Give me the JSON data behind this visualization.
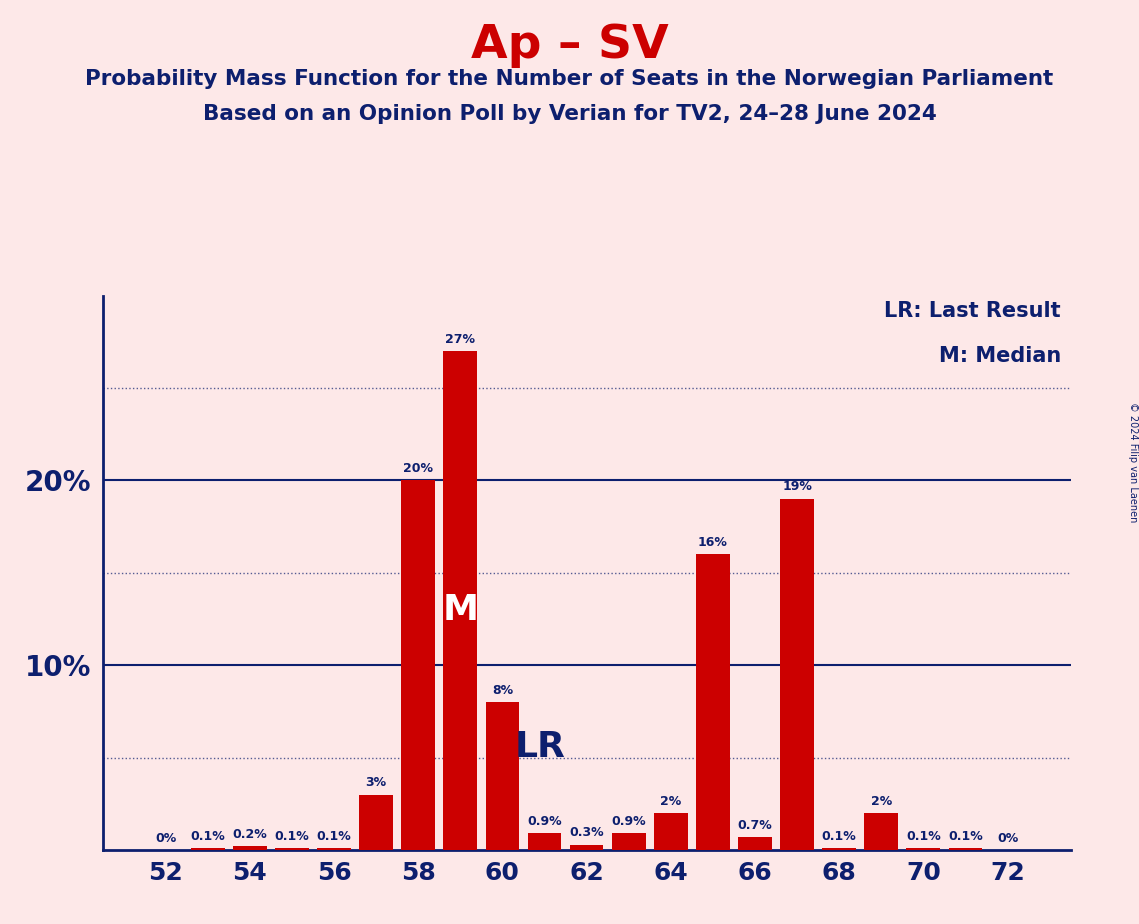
{
  "title": "Ap – SV",
  "subtitle1": "Probability Mass Function for the Number of Seats in the Norwegian Parliament",
  "subtitle2": "Based on an Opinion Poll by Verian for TV2, 24–28 June 2024",
  "copyright": "© 2024 Filip van Laenen",
  "seats": [
    52,
    53,
    54,
    55,
    56,
    57,
    58,
    59,
    60,
    61,
    62,
    63,
    64,
    65,
    66,
    67,
    68,
    69,
    70,
    71,
    72
  ],
  "values": [
    0.0,
    0.1,
    0.2,
    0.1,
    0.1,
    3.0,
    20.0,
    27.0,
    8.0,
    0.9,
    0.3,
    0.9,
    2.0,
    16.0,
    0.7,
    19.0,
    0.1,
    2.0,
    0.1,
    0.1,
    0.0
  ],
  "bar_color": "#cc0000",
  "bg_color": "#fde8e8",
  "title_color": "#cc0000",
  "text_color": "#0d1f6e",
  "median_seat": 59,
  "lr_seat": 60,
  "solid_hline_positions": [
    10.0,
    20.0
  ],
  "dotted_hline_positions": [
    5.0,
    15.0,
    25.0
  ],
  "legend_lr": "LR: Last Result",
  "legend_m": "M: Median",
  "axis_color": "#0d1f6e",
  "ylim": [
    0,
    30
  ],
  "xlim_left": 50.5,
  "xlim_right": 73.5
}
